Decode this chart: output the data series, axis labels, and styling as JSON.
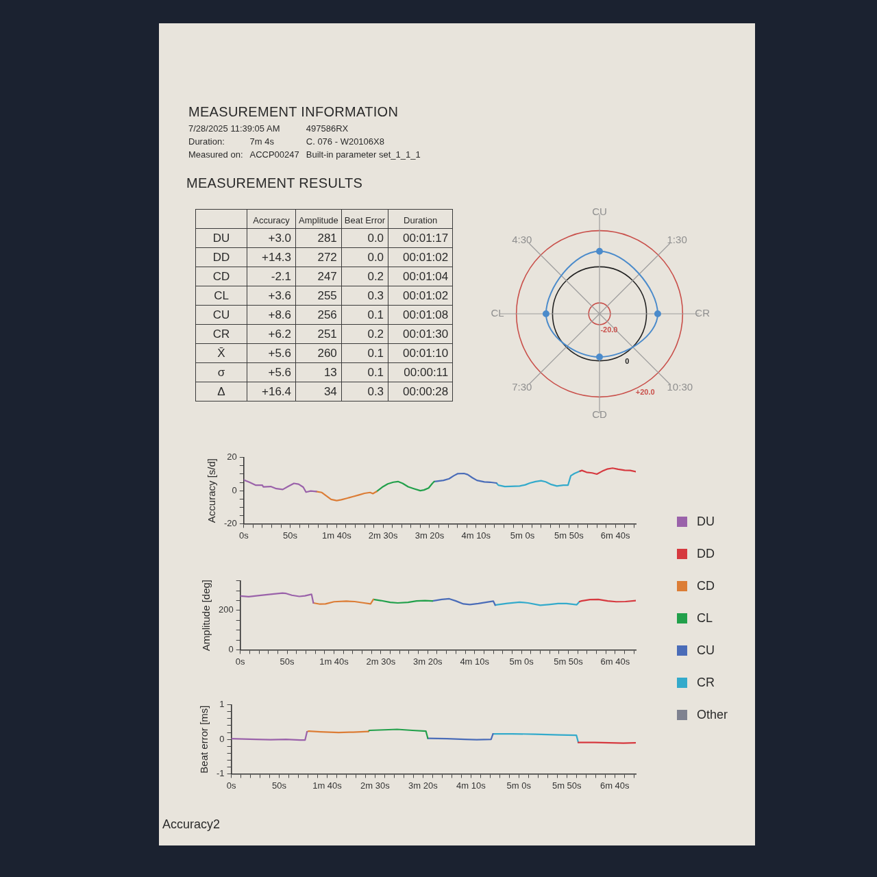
{
  "chart_data": [
    {
      "type": "other",
      "title": "MEASUREMENT INFORMATION",
      "cell_labels": [
        [
          "7/28/2025 11:39:05 AM",
          null,
          "497586RX"
        ],
        [
          "Duration:",
          "7m 4s",
          "C. 076 - W20106X8"
        ],
        [
          "Measured on:",
          "ACCP00247",
          "Built-in parameter set_1_1_1"
        ]
      ]
    },
    {
      "type": "other",
      "title": "MEASUREMENT RESULTS",
      "categories": [
        "Accuracy",
        "Amplitude",
        "Beat Error",
        "Duration"
      ],
      "y_categories": [
        "DU",
        "DD",
        "CD",
        "CL",
        "CU",
        "CR",
        "X̄",
        "σ",
        "Δ"
      ],
      "cell_labels": [
        [
          "+3.0",
          "281",
          "0.0",
          "00:01:17"
        ],
        [
          "+14.3",
          "272",
          "0.0",
          "00:01:02"
        ],
        [
          "-2.1",
          "247",
          "0.2",
          "00:01:04"
        ],
        [
          "+3.6",
          "255",
          "0.3",
          "00:01:02"
        ],
        [
          "+8.6",
          "256",
          "0.1",
          "00:01:08"
        ],
        [
          "+6.2",
          "251",
          "0.2",
          "00:01:30"
        ],
        [
          "+5.6",
          "260",
          "0.1",
          "00:01:10"
        ],
        [
          "+5.6",
          "13",
          "0.1",
          "00:00:11"
        ],
        [
          "+16.4",
          "34",
          "0.3",
          "00:00:28"
        ]
      ]
    },
    {
      "type": "radar",
      "categories": [
        "CU",
        "1:30",
        "CR",
        "10:30",
        "CD",
        "7:30",
        "CL",
        "4:30"
      ],
      "series": [
        {
          "color": "#4b8bcb",
          "values": [
            8.6,
            null,
            6.2,
            null,
            -2.1,
            null,
            3.6,
            null
          ]
        }
      ],
      "ylim": [
        -26,
        20
      ],
      "yticks": [
        {
          "value": -20,
          "label": "-20.0"
        },
        0,
        {
          "value": 20,
          "label": "+20.0"
        }
      ],
      "marker": "circle",
      "grid": true
    },
    {
      "type": "line",
      "ylabel": "Accuracy [s/d]",
      "xlim": [
        0,
        422
      ],
      "xticks": [
        {
          "value": 0,
          "label": "0s"
        },
        {
          "value": 10,
          "label": null
        },
        {
          "value": 20,
          "label": null
        },
        {
          "value": 30,
          "label": null
        },
        {
          "value": 40,
          "label": null
        },
        {
          "value": 50,
          "label": "50s"
        },
        {
          "value": 60,
          "label": null
        },
        {
          "value": 70,
          "label": null
        },
        {
          "value": 80,
          "label": null
        },
        {
          "value": 90,
          "label": null
        },
        {
          "value": 100,
          "label": "1m 40s"
        },
        {
          "value": 110,
          "label": null
        },
        {
          "value": 120,
          "label": null
        },
        {
          "value": 130,
          "label": null
        },
        {
          "value": 140,
          "label": null
        },
        {
          "value": 150,
          "label": "2m 30s"
        },
        {
          "value": 160,
          "label": null
        },
        {
          "value": 170,
          "label": null
        },
        {
          "value": 180,
          "label": null
        },
        {
          "value": 190,
          "label": null
        },
        {
          "value": 200,
          "label": "3m 20s"
        },
        {
          "value": 210,
          "label": null
        },
        {
          "value": 220,
          "label": null
        },
        {
          "value": 230,
          "label": null
        },
        {
          "value": 240,
          "label": null
        },
        {
          "value": 250,
          "label": "4m 10s"
        },
        {
          "value": 260,
          "label": null
        },
        {
          "value": 270,
          "label": null
        },
        {
          "value": 280,
          "label": null
        },
        {
          "value": 290,
          "label": null
        },
        {
          "value": 300,
          "label": "5m 0s"
        },
        {
          "value": 310,
          "label": null
        },
        {
          "value": 320,
          "label": null
        },
        {
          "value": 330,
          "label": null
        },
        {
          "value": 340,
          "label": null
        },
        {
          "value": 350,
          "label": "5m 50s"
        },
        {
          "value": 360,
          "label": null
        },
        {
          "value": 370,
          "label": null
        },
        {
          "value": 380,
          "label": null
        },
        {
          "value": 390,
          "label": null
        },
        {
          "value": 400,
          "label": "6m 40s"
        },
        {
          "value": 410,
          "label": null
        },
        {
          "value": 420,
          "label": null
        }
      ],
      "ylim": [
        -20,
        20
      ],
      "yticks": [
        -20,
        {
          "value": -15,
          "label": null
        },
        {
          "value": -10,
          "label": null
        },
        {
          "value": -5,
          "label": null
        },
        0,
        {
          "value": 5,
          "label": null
        },
        {
          "value": 10,
          "label": null
        },
        {
          "value": 15,
          "label": null
        },
        20
      ],
      "series": [
        {
          "color": "#9a62aa",
          "x": [
            0,
            6,
            13,
            20,
            21,
            29,
            35,
            42,
            48,
            54,
            59,
            64,
            67,
            72,
            78
          ],
          "values": [
            6.5,
            5.1,
            3.3,
            3.3,
            2.3,
            2.5,
            1.2,
            0.7,
            2.6,
            4.4,
            3.9,
            2.1,
            -0.9,
            -0.2,
            -0.5
          ]
        },
        {
          "color": "#d6393f",
          "x": [
            362,
            364,
            369,
            375,
            380,
            386,
            391,
            397,
            403,
            410,
            416,
            422
          ],
          "values": [
            11.8,
            12.2,
            11.1,
            10.7,
            10.0,
            11.8,
            13.0,
            13.6,
            12.9,
            12.3,
            12.2,
            11.5
          ]
        },
        {
          "color": "#dc7d36",
          "x": [
            78,
            84,
            89,
            94,
            100,
            105,
            111,
            117,
            124,
            130,
            136,
            139,
            143
          ],
          "values": [
            -0.5,
            -1.1,
            -3.2,
            -5.3,
            -6.0,
            -5.5,
            -4.6,
            -3.7,
            -2.6,
            -1.6,
            -1.1,
            -1.8,
            -0.5
          ]
        },
        {
          "color": "#22a04b",
          "x": [
            143,
            149,
            155,
            161,
            166,
            171,
            177,
            183,
            190,
            194,
            199,
            203,
            205
          ],
          "values": [
            -0.5,
            2.1,
            4.1,
            5.1,
            5.5,
            4.4,
            2.3,
            1.2,
            0.0,
            0.4,
            1.6,
            4.4,
            5.5
          ]
        },
        {
          "color": "#4a6cb8",
          "x": [
            205,
            215,
            221,
            226,
            230,
            237,
            241,
            246,
            251,
            259,
            265,
            272
          ],
          "values": [
            5.5,
            6.2,
            7.2,
            9.0,
            10.2,
            10.4,
            9.7,
            7.8,
            6.2,
            5.3,
            5.1,
            4.6
          ]
        },
        {
          "color": "#33aacb",
          "x": [
            272,
            274,
            281,
            287,
            297,
            303,
            308,
            314,
            320,
            325,
            331,
            337,
            344,
            349,
            352,
            356,
            362
          ],
          "values": [
            4.6,
            3.3,
            2.5,
            2.6,
            2.8,
            3.5,
            4.6,
            5.5,
            6.0,
            5.3,
            3.7,
            2.8,
            3.3,
            3.3,
            9.0,
            10.4,
            11.8
          ]
        }
      ]
    },
    {
      "type": "line",
      "ylabel": "Amplitude [deg]",
      "legend": "right",
      "xlim": [
        0,
        422
      ],
      "xticks": [
        {
          "value": 0,
          "label": "0s"
        },
        {
          "value": 10,
          "label": null
        },
        {
          "value": 20,
          "label": null
        },
        {
          "value": 30,
          "label": null
        },
        {
          "value": 40,
          "label": null
        },
        {
          "value": 50,
          "label": "50s"
        },
        {
          "value": 60,
          "label": null
        },
        {
          "value": 70,
          "label": null
        },
        {
          "value": 80,
          "label": null
        },
        {
          "value": 90,
          "label": null
        },
        {
          "value": 100,
          "label": "1m 40s"
        },
        {
          "value": 110,
          "label": null
        },
        {
          "value": 120,
          "label": null
        },
        {
          "value": 130,
          "label": null
        },
        {
          "value": 140,
          "label": null
        },
        {
          "value": 150,
          "label": "2m 30s"
        },
        {
          "value": 160,
          "label": null
        },
        {
          "value": 170,
          "label": null
        },
        {
          "value": 180,
          "label": null
        },
        {
          "value": 190,
          "label": null
        },
        {
          "value": 200,
          "label": "3m 20s"
        },
        {
          "value": 210,
          "label": null
        },
        {
          "value": 220,
          "label": null
        },
        {
          "value": 230,
          "label": null
        },
        {
          "value": 240,
          "label": null
        },
        {
          "value": 250,
          "label": "4m 10s"
        },
        {
          "value": 260,
          "label": null
        },
        {
          "value": 270,
          "label": null
        },
        {
          "value": 280,
          "label": null
        },
        {
          "value": 290,
          "label": null
        },
        {
          "value": 300,
          "label": "5m 0s"
        },
        {
          "value": 310,
          "label": null
        },
        {
          "value": 320,
          "label": null
        },
        {
          "value": 330,
          "label": null
        },
        {
          "value": 340,
          "label": null
        },
        {
          "value": 350,
          "label": "5m 50s"
        },
        {
          "value": 360,
          "label": null
        },
        {
          "value": 370,
          "label": null
        },
        {
          "value": 380,
          "label": null
        },
        {
          "value": 390,
          "label": null
        },
        {
          "value": 400,
          "label": "6m 40s"
        },
        {
          "value": 410,
          "label": null
        },
        {
          "value": 420,
          "label": null
        }
      ],
      "ylim": [
        0,
        350
      ],
      "yticks": [
        0,
        {
          "value": 50,
          "label": null
        },
        {
          "value": 100,
          "label": null
        },
        {
          "value": 150,
          "label": null
        },
        200,
        {
          "value": 250,
          "label": null
        },
        {
          "value": 300,
          "label": null
        },
        {
          "value": 350,
          "label": null
        }
      ],
      "series": [
        {
          "name": "DU",
          "color": "#9a62aa",
          "x": [
            0,
            9,
            22,
            34,
            45,
            49,
            55,
            63,
            69,
            76,
            78
          ],
          "values": [
            273,
            270,
            277,
            283,
            288,
            286,
            277,
            271,
            274,
            282,
            238
          ]
        },
        {
          "name": "DD",
          "color": "#d6393f",
          "x": [
            362,
            364,
            373,
            382,
            392,
            401,
            411,
            422
          ],
          "values": [
            245,
            248,
            255,
            256,
            248,
            244,
            245,
            250
          ]
        },
        {
          "name": "CD",
          "color": "#dc7d36",
          "x": [
            78,
            85,
            91,
            100,
            113,
            122,
            132,
            139,
            142
          ],
          "values": [
            238,
            232,
            233,
            244,
            247,
            245,
            238,
            233,
            256
          ]
        },
        {
          "name": "CL",
          "color": "#22a04b",
          "x": [
            142,
            150,
            160,
            168,
            179,
            188,
            197,
            205
          ],
          "values": [
            256,
            250,
            241,
            238,
            241,
            248,
            250,
            248
          ]
        },
        {
          "name": "CU",
          "color": "#4a6cb8",
          "x": [
            205,
            215,
            223,
            230,
            238,
            245,
            254,
            263,
            270,
            272
          ],
          "values": [
            248,
            256,
            259,
            248,
            233,
            230,
            235,
            242,
            247,
            227
          ]
        },
        {
          "name": "CR",
          "color": "#33aacb",
          "x": [
            272,
            274,
            285,
            298,
            307,
            320,
            329,
            339,
            348,
            359,
            362
          ],
          "values": [
            227,
            229,
            236,
            242,
            238,
            226,
            230,
            235,
            235,
            229,
            245
          ]
        },
        {
          "name": "Other",
          "color": "#7f8290"
        }
      ]
    },
    {
      "type": "line",
      "ylabel": "Beat error [ms]",
      "annotations": [
        "Accuracy2"
      ],
      "xlim": [
        0,
        422
      ],
      "xticks": [
        {
          "value": 0,
          "label": "0s"
        },
        {
          "value": 10,
          "label": null
        },
        {
          "value": 20,
          "label": null
        },
        {
          "value": 30,
          "label": null
        },
        {
          "value": 40,
          "label": null
        },
        {
          "value": 50,
          "label": "50s"
        },
        {
          "value": 60,
          "label": null
        },
        {
          "value": 70,
          "label": null
        },
        {
          "value": 80,
          "label": null
        },
        {
          "value": 90,
          "label": null
        },
        {
          "value": 100,
          "label": "1m 40s"
        },
        {
          "value": 110,
          "label": null
        },
        {
          "value": 120,
          "label": null
        },
        {
          "value": 130,
          "label": null
        },
        {
          "value": 140,
          "label": null
        },
        {
          "value": 150,
          "label": "2m 30s"
        },
        {
          "value": 160,
          "label": null
        },
        {
          "value": 170,
          "label": null
        },
        {
          "value": 180,
          "label": null
        },
        {
          "value": 190,
          "label": null
        },
        {
          "value": 200,
          "label": "3m 20s"
        },
        {
          "value": 210,
          "label": null
        },
        {
          "value": 220,
          "label": null
        },
        {
          "value": 230,
          "label": null
        },
        {
          "value": 240,
          "label": null
        },
        {
          "value": 250,
          "label": "4m 10s"
        },
        {
          "value": 260,
          "label": null
        },
        {
          "value": 270,
          "label": null
        },
        {
          "value": 280,
          "label": null
        },
        {
          "value": 290,
          "label": null
        },
        {
          "value": 300,
          "label": "5m 0s"
        },
        {
          "value": 310,
          "label": null
        },
        {
          "value": 320,
          "label": null
        },
        {
          "value": 330,
          "label": null
        },
        {
          "value": 340,
          "label": null
        },
        {
          "value": 350,
          "label": "5m 50s"
        },
        {
          "value": 360,
          "label": null
        },
        {
          "value": 370,
          "label": null
        },
        {
          "value": 380,
          "label": null
        },
        {
          "value": 390,
          "label": null
        },
        {
          "value": 400,
          "label": "6m 40s"
        },
        {
          "value": 410,
          "label": null
        },
        {
          "value": 420,
          "label": null
        }
      ],
      "ylim": [
        -1,
        1
      ],
      "yticks": [
        -1,
        {
          "value": -0.8,
          "label": null
        },
        {
          "value": -0.6,
          "label": null
        },
        {
          "value": -0.4,
          "label": null
        },
        {
          "value": -0.2,
          "label": null
        },
        0,
        {
          "value": 0.2,
          "label": null
        },
        {
          "value": 0.4,
          "label": null
        },
        {
          "value": 0.6,
          "label": null
        },
        {
          "value": 0.8,
          "label": null
        },
        1
      ],
      "series": [
        {
          "color": "#9a62aa",
          "x": [
            0,
            26,
            41,
            57,
            72,
            77,
            79
          ],
          "values": [
            0.02,
            0.0,
            -0.01,
            0.0,
            -0.02,
            -0.02,
            0.22
          ]
        },
        {
          "color": "#d6393f",
          "x": [
            362,
            379,
            394,
            409,
            422
          ],
          "values": [
            -0.09,
            -0.09,
            -0.1,
            -0.11,
            -0.1
          ]
        },
        {
          "color": "#dc7d36",
          "x": [
            79,
            81,
            93,
            112,
            127,
            143
          ],
          "values": [
            0.22,
            0.24,
            0.22,
            0.2,
            0.21,
            0.23
          ]
        },
        {
          "color": "#22a04b",
          "x": [
            143,
            144,
            164,
            173,
            189,
            203,
            205
          ],
          "values": [
            0.23,
            0.26,
            0.28,
            0.29,
            0.26,
            0.24,
            0.03
          ]
        },
        {
          "color": "#4a6cb8",
          "x": [
            205,
            225,
            244,
            256,
            271,
            273
          ],
          "values": [
            0.03,
            0.02,
            0.0,
            -0.01,
            0.0,
            0.16
          ]
        },
        {
          "color": "#33aacb",
          "x": [
            273,
            293,
            317,
            342,
            360,
            362
          ],
          "values": [
            0.16,
            0.16,
            0.15,
            0.13,
            0.12,
            -0.09
          ]
        }
      ]
    }
  ]
}
